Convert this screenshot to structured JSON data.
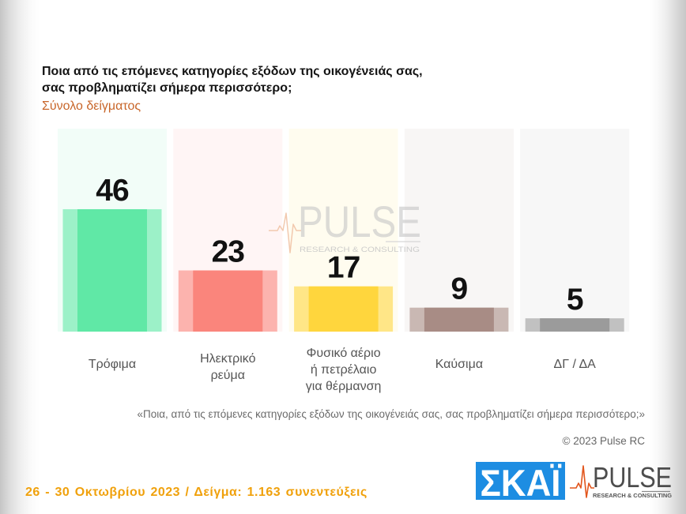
{
  "chart_data": {
    "type": "bar",
    "title": "Ποια από τις επόμενες κατηγορίες εξόδων της οικογένειάς σας,\nσας προβληματίζει σήμερα περισσότερο;",
    "subtitle": "Σύνολο δείγματος",
    "categories": [
      "Τρόφιμα",
      "Ηλεκτρικό\nρεύμα",
      "Φυσικό αέριο\nή πετρέλαιο\nγια θέρμανση",
      "Καύσιμα",
      "ΔΓ / ΔΑ"
    ],
    "values": [
      46,
      23,
      17,
      9,
      5
    ],
    "colors": [
      "#60e8a6",
      "#fa857c",
      "#ffd63d",
      "#a88c85",
      "#9b9b9b"
    ],
    "xlabel": "",
    "ylabel": "",
    "grid": false
  },
  "question_note": "«Ποια, από τις επόμενες κατηγορίες εξόδων της οικογένειάς σας, σας προβληματίζει σήμερα περισσότερο;»",
  "copyright": "© 2023 Pulse RC",
  "fieldwork": "26 - 30 Οκτωβρίου 2023 / Δείγμα: 1.163 συνεντεύξεις",
  "logos": {
    "broadcaster": {
      "text": "ΣΚΑΪ",
      "background": "#1d8de2"
    },
    "pollster": {
      "name": "PULSE",
      "tagline": "RESEARCH & CONSULTING",
      "accent": "#e2561d"
    },
    "watermark": {
      "name": "PULSE",
      "tagline": "RESEARCH & CONSULTING"
    }
  },
  "colors": {
    "title": "#141414",
    "subtitle": "#c8662a",
    "fieldwork": "#f0a10c"
  }
}
